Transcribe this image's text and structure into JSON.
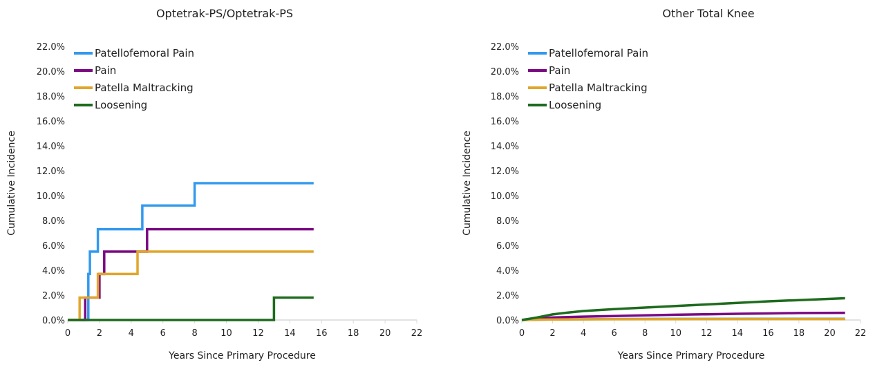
{
  "chart_data": [
    {
      "type": "line",
      "title": "Optetrak-PS/Optetrak-PS",
      "xlabel": "Years Since Primary Procedure",
      "ylabel": "Cumulative Incidence",
      "xlim": [
        0,
        22
      ],
      "ylim": [
        0,
        22
      ],
      "x_ticks": [
        "0",
        "2",
        "4",
        "6",
        "8",
        "10",
        "12",
        "14",
        "16",
        "18",
        "20",
        "22"
      ],
      "y_ticks": [
        "0.0%",
        "2.0%",
        "4.0%",
        "6.0%",
        "8.0%",
        "10.0%",
        "12.0%",
        "14.0%",
        "16.0%",
        "18.0%",
        "20.0%",
        "22.0%"
      ],
      "grid": false,
      "legend": "top-left",
      "step": true,
      "series": [
        {
          "name": "Patellofemoral Pain",
          "color": "#3399ee",
          "points": [
            [
              0,
              0
            ],
            [
              1.3,
              0
            ],
            [
              1.3,
              3.7
            ],
            [
              1.4,
              3.7
            ],
            [
              1.4,
              5.5
            ],
            [
              1.9,
              5.5
            ],
            [
              1.9,
              7.3
            ],
            [
              4.7,
              7.3
            ],
            [
              4.7,
              9.2
            ],
            [
              8.0,
              9.2
            ],
            [
              8.0,
              11.0
            ],
            [
              15.5,
              11.0
            ]
          ]
        },
        {
          "name": "Pain",
          "color": "#7b0a82",
          "points": [
            [
              0,
              0
            ],
            [
              1.1,
              0
            ],
            [
              1.1,
              1.8
            ],
            [
              2.0,
              1.8
            ],
            [
              2.0,
              3.7
            ],
            [
              2.3,
              3.7
            ],
            [
              2.3,
              5.5
            ],
            [
              5.0,
              5.5
            ],
            [
              5.0,
              7.3
            ],
            [
              15.5,
              7.3
            ]
          ]
        },
        {
          "name": "Patella Maltracking",
          "color": "#e0a62c",
          "points": [
            [
              0,
              0
            ],
            [
              0.75,
              0
            ],
            [
              0.75,
              1.8
            ],
            [
              1.9,
              1.8
            ],
            [
              1.9,
              3.7
            ],
            [
              4.4,
              3.7
            ],
            [
              4.4,
              5.5
            ],
            [
              15.5,
              5.5
            ]
          ]
        },
        {
          "name": "Loosening",
          "color": "#1e6b1e",
          "points": [
            [
              0,
              0
            ],
            [
              13.0,
              0
            ],
            [
              13.0,
              1.8
            ],
            [
              15.5,
              1.8
            ]
          ]
        }
      ]
    },
    {
      "type": "line",
      "title": "Other Total Knee",
      "xlabel": "Years Since Primary Procedure",
      "ylabel": "Cumulative Incidence",
      "xlim": [
        0,
        22
      ],
      "ylim": [
        0,
        22
      ],
      "x_ticks": [
        "0",
        "2",
        "4",
        "6",
        "8",
        "10",
        "12",
        "14",
        "16",
        "18",
        "20",
        "22"
      ],
      "y_ticks": [
        "0.0%",
        "2.0%",
        "4.0%",
        "6.0%",
        "8.0%",
        "10.0%",
        "12.0%",
        "14.0%",
        "16.0%",
        "18.0%",
        "20.0%",
        "22.0%"
      ],
      "grid": false,
      "legend": "top-left",
      "step": false,
      "series": [
        {
          "name": "Patellofemoral Pain",
          "color": "#3399ee",
          "points": [
            [
              0,
              0
            ],
            [
              2,
              0.05
            ],
            [
              5,
              0.07
            ],
            [
              10,
              0.09
            ],
            [
              15,
              0.1
            ],
            [
              21,
              0.1
            ]
          ]
        },
        {
          "name": "Pain",
          "color": "#7b0a82",
          "points": [
            [
              0,
              0
            ],
            [
              1,
              0.1
            ],
            [
              2,
              0.2
            ],
            [
              4,
              0.27
            ],
            [
              6,
              0.32
            ],
            [
              8,
              0.37
            ],
            [
              10,
              0.42
            ],
            [
              12,
              0.46
            ],
            [
              14,
              0.5
            ],
            [
              16,
              0.53
            ],
            [
              18,
              0.56
            ],
            [
              21,
              0.58
            ]
          ]
        },
        {
          "name": "Patella Maltracking",
          "color": "#e0a62c",
          "points": [
            [
              0,
              0
            ],
            [
              1,
              0.03
            ],
            [
              3,
              0.05
            ],
            [
              6,
              0.06
            ],
            [
              10,
              0.07
            ],
            [
              15,
              0.08
            ],
            [
              21,
              0.08
            ]
          ]
        },
        {
          "name": "Loosening",
          "color": "#1e6b1e",
          "points": [
            [
              0,
              0
            ],
            [
              1,
              0.2
            ],
            [
              2,
              0.45
            ],
            [
              3,
              0.6
            ],
            [
              4,
              0.72
            ],
            [
              6,
              0.87
            ],
            [
              8,
              1.0
            ],
            [
              10,
              1.12
            ],
            [
              12,
              1.25
            ],
            [
              14,
              1.38
            ],
            [
              16,
              1.5
            ],
            [
              18,
              1.6
            ],
            [
              21,
              1.75
            ]
          ]
        }
      ]
    }
  ]
}
